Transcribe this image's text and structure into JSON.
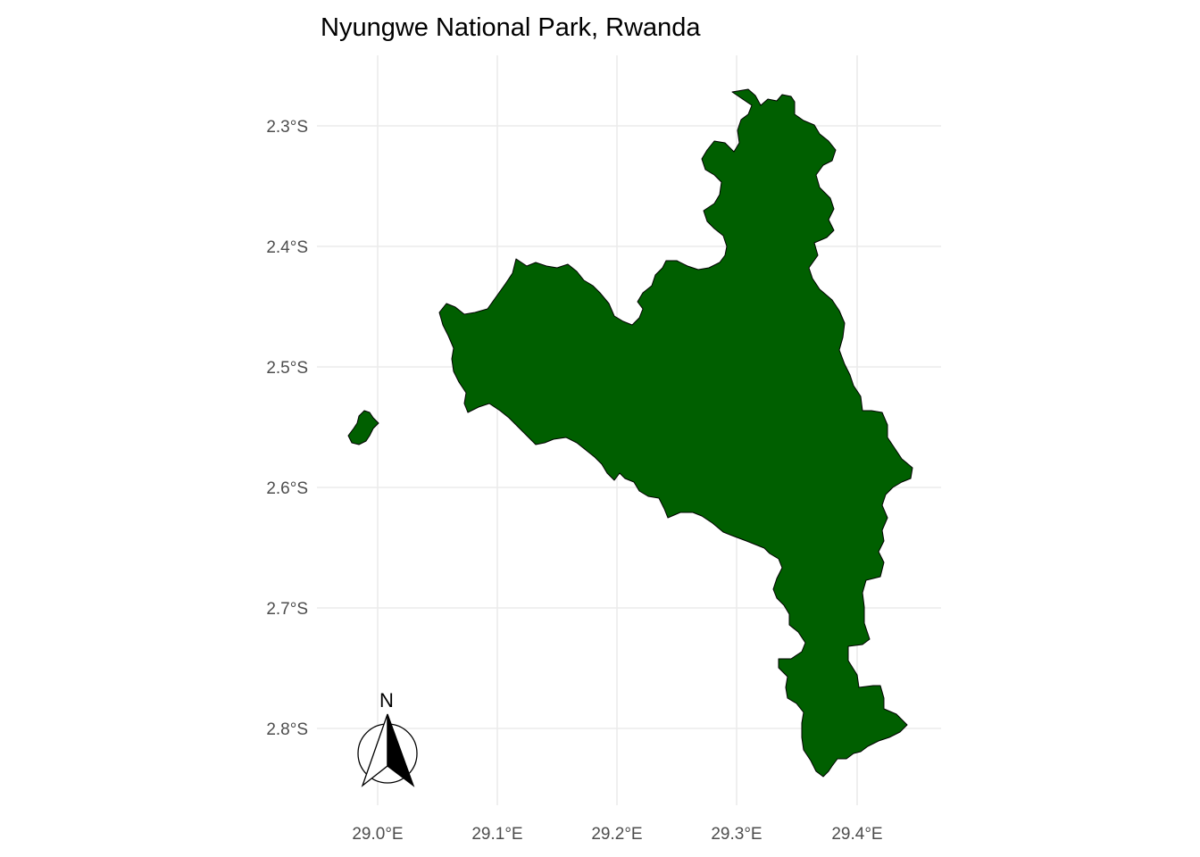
{
  "map": {
    "title": "Nyungwe National Park, Rwanda",
    "x_axis": {
      "ticks": [
        {
          "value": 29.0,
          "label": "29.0°E"
        },
        {
          "value": 29.1,
          "label": "29.1°E"
        },
        {
          "value": 29.2,
          "label": "29.2°E"
        },
        {
          "value": 29.3,
          "label": "29.3°E"
        },
        {
          "value": 29.4,
          "label": "29.4°E"
        }
      ]
    },
    "y_axis": {
      "ticks": [
        {
          "value": -2.3,
          "label": "2.3°S"
        },
        {
          "value": -2.4,
          "label": "2.4°S"
        },
        {
          "value": -2.5,
          "label": "2.5°S"
        },
        {
          "value": -2.6,
          "label": "2.6°S"
        },
        {
          "value": -2.7,
          "label": "2.7°S"
        },
        {
          "value": -2.8,
          "label": "2.8°S"
        }
      ]
    },
    "park": {
      "fill_color": "#005f00",
      "outline_color": "#000000"
    },
    "north_arrow": {
      "label": "N"
    },
    "grid": true,
    "background_color": "#ffffff"
  }
}
